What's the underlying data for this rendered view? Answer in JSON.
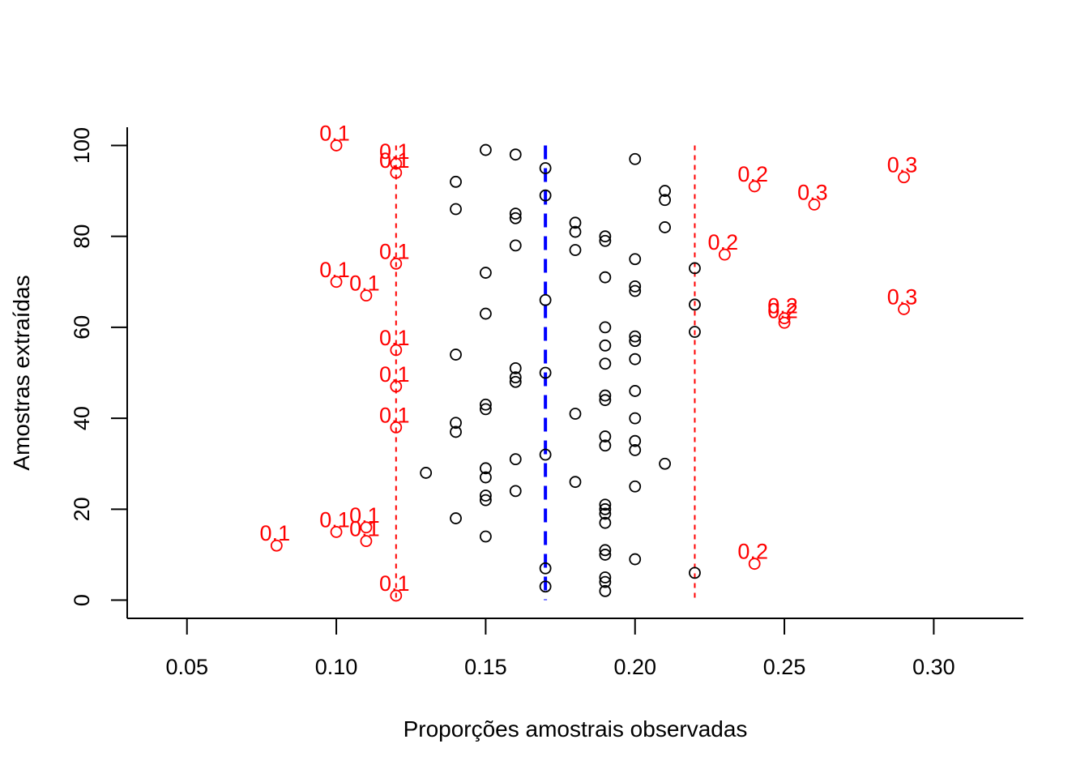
{
  "chart_data": {
    "type": "scatter",
    "title": "",
    "xlabel": "Proporções amostrais observadas",
    "ylabel": "Amostras extraídas",
    "xlim": [
      0.03,
      0.33
    ],
    "ylim": [
      -4,
      104
    ],
    "x_ticks": [
      "0.05",
      "0.10",
      "0.15",
      "0.20",
      "0.25",
      "0.30"
    ],
    "y_ticks": [
      "0",
      "20",
      "40",
      "60",
      "80",
      "100"
    ],
    "grid": false,
    "colors": {
      "inside": "#000000",
      "outside": "#ff0000",
      "center_line": "#0000ff",
      "limit_lines": "#ff0000"
    },
    "center_line": {
      "x": 0.17,
      "y_range": [
        0,
        100
      ],
      "style": "dashed"
    },
    "limit_lines": [
      {
        "x": 0.12,
        "y_range": [
          0,
          100
        ],
        "style": "dotted"
      },
      {
        "x": 0.22,
        "y_range": [
          0,
          100
        ],
        "style": "dotted"
      }
    ],
    "points_inside": [
      [
        0.17,
        3
      ],
      [
        0.19,
        2
      ],
      [
        0.19,
        4
      ],
      [
        0.19,
        5
      ],
      [
        0.22,
        6
      ],
      [
        0.17,
        7
      ],
      [
        0.2,
        9
      ],
      [
        0.19,
        10
      ],
      [
        0.19,
        11
      ],
      [
        0.15,
        14
      ],
      [
        0.19,
        17
      ],
      [
        0.14,
        18
      ],
      [
        0.19,
        19
      ],
      [
        0.19,
        20
      ],
      [
        0.19,
        21
      ],
      [
        0.15,
        22
      ],
      [
        0.15,
        23
      ],
      [
        0.16,
        24
      ],
      [
        0.2,
        25
      ],
      [
        0.18,
        26
      ],
      [
        0.15,
        27
      ],
      [
        0.13,
        28
      ],
      [
        0.15,
        29
      ],
      [
        0.21,
        30
      ],
      [
        0.16,
        31
      ],
      [
        0.17,
        32
      ],
      [
        0.2,
        33
      ],
      [
        0.19,
        34
      ],
      [
        0.2,
        35
      ],
      [
        0.19,
        36
      ],
      [
        0.14,
        37
      ],
      [
        0.14,
        39
      ],
      [
        0.2,
        40
      ],
      [
        0.18,
        41
      ],
      [
        0.15,
        42
      ],
      [
        0.15,
        43
      ],
      [
        0.19,
        44
      ],
      [
        0.19,
        45
      ],
      [
        0.2,
        46
      ],
      [
        0.16,
        48
      ],
      [
        0.16,
        49
      ],
      [
        0.17,
        50
      ],
      [
        0.16,
        51
      ],
      [
        0.19,
        52
      ],
      [
        0.2,
        53
      ],
      [
        0.14,
        54
      ],
      [
        0.19,
        56
      ],
      [
        0.2,
        57
      ],
      [
        0.2,
        58
      ],
      [
        0.22,
        59
      ],
      [
        0.19,
        60
      ],
      [
        0.15,
        63
      ],
      [
        0.22,
        65
      ],
      [
        0.17,
        66
      ],
      [
        0.2,
        68
      ],
      [
        0.2,
        69
      ],
      [
        0.19,
        71
      ],
      [
        0.15,
        72
      ],
      [
        0.22,
        73
      ],
      [
        0.2,
        75
      ],
      [
        0.18,
        77
      ],
      [
        0.16,
        78
      ],
      [
        0.19,
        79
      ],
      [
        0.19,
        80
      ],
      [
        0.18,
        81
      ],
      [
        0.21,
        82
      ],
      [
        0.18,
        83
      ],
      [
        0.16,
        84
      ],
      [
        0.16,
        85
      ],
      [
        0.14,
        86
      ],
      [
        0.21,
        88
      ],
      [
        0.17,
        89
      ],
      [
        0.21,
        90
      ],
      [
        0.14,
        92
      ],
      [
        0.17,
        95
      ],
      [
        0.2,
        97
      ],
      [
        0.16,
        98
      ],
      [
        0.15,
        99
      ]
    ],
    "points_outside": [
      {
        "x": 0.12,
        "y": 1,
        "label": "0.1"
      },
      {
        "x": 0.24,
        "y": 8,
        "label": "0.2"
      },
      {
        "x": 0.08,
        "y": 12,
        "label": "0.1"
      },
      {
        "x": 0.11,
        "y": 13,
        "label": "0.1"
      },
      {
        "x": 0.1,
        "y": 15,
        "label": "0.1"
      },
      {
        "x": 0.11,
        "y": 16,
        "label": "0.1"
      },
      {
        "x": 0.12,
        "y": 38,
        "label": "0.1"
      },
      {
        "x": 0.12,
        "y": 47,
        "label": "0.1"
      },
      {
        "x": 0.12,
        "y": 55,
        "label": "0.1"
      },
      {
        "x": 0.25,
        "y": 61,
        "label": "0.2"
      },
      {
        "x": 0.25,
        "y": 62,
        "label": "0.2"
      },
      {
        "x": 0.29,
        "y": 64,
        "label": "0.3"
      },
      {
        "x": 0.11,
        "y": 67,
        "label": "0.1"
      },
      {
        "x": 0.1,
        "y": 70,
        "label": "0.1"
      },
      {
        "x": 0.12,
        "y": 74,
        "label": "0.1"
      },
      {
        "x": 0.23,
        "y": 76,
        "label": "0.2"
      },
      {
        "x": 0.26,
        "y": 87,
        "label": "0.3"
      },
      {
        "x": 0.24,
        "y": 91,
        "label": "0.2"
      },
      {
        "x": 0.29,
        "y": 93,
        "label": "0.3"
      },
      {
        "x": 0.12,
        "y": 94,
        "label": "0.1"
      },
      {
        "x": 0.12,
        "y": 96,
        "label": "0.1"
      },
      {
        "x": 0.1,
        "y": 100,
        "label": "0.1"
      }
    ]
  }
}
